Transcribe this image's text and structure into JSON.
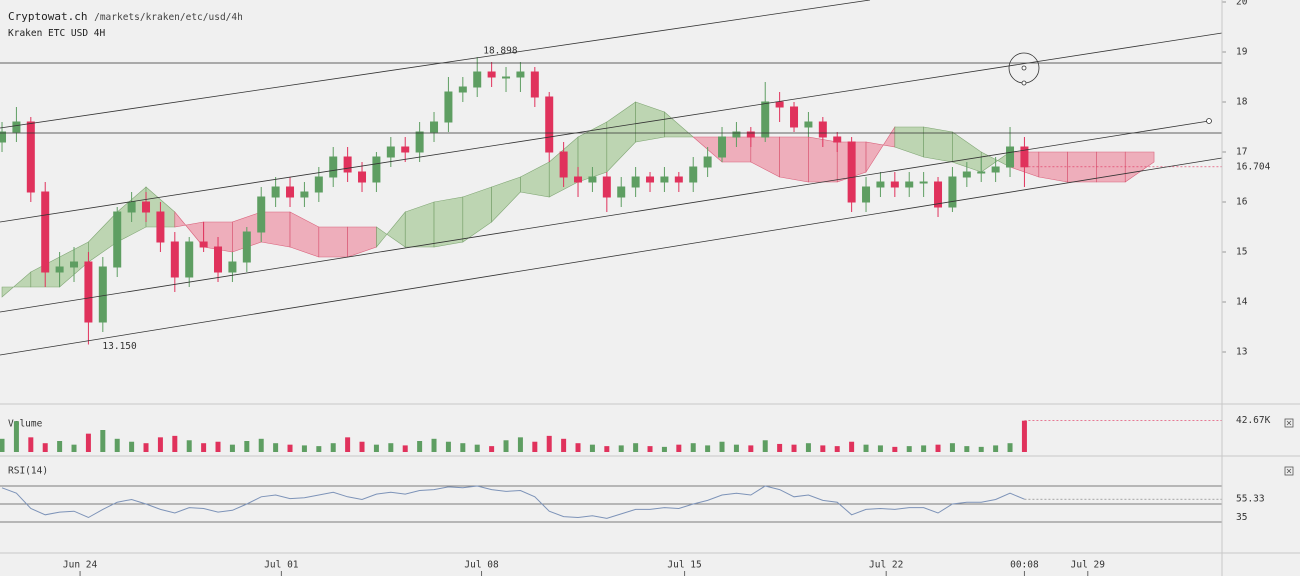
{
  "header": {
    "site": "Cryptowat.ch",
    "path": "/markets/kraken/etc/usd/4h",
    "subtitle": "Kraken ETC USD 4H"
  },
  "chart_data": [
    {
      "type": "candlestick",
      "up_color": "#5e9e62",
      "down_color": "#e0325c",
      "xlim": [
        -0.14,
        84.72
      ],
      "ylim": [
        11.98,
        20.04
      ],
      "yticks": [
        13,
        14,
        15,
        16,
        17,
        18,
        19,
        20
      ],
      "xticks": [
        {
          "value": 5.42,
          "label": "Jun 24"
        },
        {
          "value": 19.4,
          "label": "Jul 01"
        },
        {
          "value": 33.3,
          "label": "Jul 08"
        },
        {
          "value": 47.4,
          "label": "Jul 15"
        },
        {
          "value": 61.4,
          "label": "Jul 22"
        },
        {
          "value": 71,
          "label": "00:08"
        },
        {
          "value": 75.4,
          "label": "Jul 29"
        }
      ],
      "open": [
        17.2,
        17.4,
        17.6,
        16.2,
        14.6,
        14.7,
        14.8,
        13.6,
        14.7,
        15.8,
        16.0,
        15.8,
        15.2,
        14.5,
        15.2,
        15.1,
        14.6,
        14.8,
        15.4,
        16.1,
        16.3,
        16.1,
        16.2,
        16.5,
        16.9,
        16.6,
        16.4,
        16.9,
        17.1,
        17.0,
        17.4,
        17.6,
        18.2,
        18.3,
        18.6,
        18.5,
        18.5,
        18.6,
        18.1,
        17.0,
        16.5,
        16.4,
        16.5,
        16.1,
        16.3,
        16.5,
        16.4,
        16.5,
        16.4,
        16.7,
        16.9,
        17.3,
        17.4,
        17.3,
        18.0,
        17.9,
        17.5,
        17.6,
        17.3,
        17.2,
        16.0,
        16.3,
        16.4,
        16.3,
        16.4,
        16.4,
        15.9,
        16.5,
        16.6,
        16.6,
        16.7,
        17.1
      ],
      "high": [
        17.6,
        17.9,
        17.7,
        16.4,
        15.0,
        15.1,
        15.0,
        14.9,
        15.9,
        16.2,
        16.2,
        16.0,
        15.4,
        15.3,
        15.6,
        15.3,
        15.0,
        15.5,
        16.3,
        16.5,
        16.5,
        16.4,
        16.7,
        17.1,
        17.1,
        16.8,
        17.0,
        17.3,
        17.3,
        17.6,
        17.8,
        18.5,
        18.5,
        18.898,
        18.8,
        18.7,
        18.8,
        18.7,
        18.2,
        17.2,
        16.7,
        16.7,
        16.6,
        16.5,
        16.7,
        16.6,
        16.7,
        16.6,
        16.9,
        17.1,
        17.5,
        17.6,
        17.5,
        18.4,
        18.2,
        18.0,
        17.8,
        17.7,
        17.4,
        17.3,
        16.5,
        16.6,
        16.6,
        16.6,
        16.6,
        16.5,
        16.7,
        16.8,
        16.9,
        16.9,
        17.5,
        17.3
      ],
      "low": [
        17.0,
        17.2,
        16.0,
        14.3,
        14.3,
        14.4,
        13.15,
        13.4,
        14.5,
        15.6,
        15.6,
        15.0,
        14.2,
        14.3,
        15.0,
        14.4,
        14.4,
        14.6,
        15.2,
        15.9,
        15.9,
        15.9,
        16.0,
        16.3,
        16.4,
        16.2,
        16.2,
        16.7,
        16.8,
        16.8,
        17.2,
        17.4,
        18.0,
        18.1,
        18.3,
        18.2,
        18.2,
        17.9,
        16.8,
        16.3,
        16.1,
        16.2,
        15.8,
        15.9,
        16.1,
        16.2,
        16.2,
        16.2,
        16.2,
        16.5,
        16.8,
        17.1,
        17.1,
        17.2,
        17.6,
        17.4,
        17.3,
        17.1,
        17.0,
        15.8,
        15.8,
        16.1,
        16.1,
        16.1,
        16.1,
        15.7,
        15.8,
        16.3,
        16.4,
        16.4,
        16.5,
        16.3
      ],
      "close": [
        17.4,
        17.6,
        16.2,
        14.6,
        14.7,
        14.8,
        13.6,
        14.7,
        15.8,
        16.0,
        15.8,
        15.2,
        14.5,
        15.2,
        15.1,
        14.6,
        14.8,
        15.4,
        16.1,
        16.3,
        16.1,
        16.2,
        16.5,
        16.9,
        16.6,
        16.4,
        16.9,
        17.1,
        17.0,
        17.4,
        17.6,
        18.2,
        18.3,
        18.6,
        18.5,
        18.5,
        18.6,
        18.1,
        17.0,
        16.5,
        16.4,
        16.5,
        16.1,
        16.3,
        16.5,
        16.4,
        16.5,
        16.4,
        16.7,
        16.9,
        17.3,
        17.4,
        17.3,
        18.0,
        17.9,
        17.5,
        17.6,
        17.3,
        17.2,
        16.0,
        16.3,
        16.4,
        16.3,
        16.4,
        16.4,
        15.9,
        16.5,
        16.6,
        16.6,
        16.7,
        17.1,
        16.704
      ],
      "high_label": 18.898,
      "low_label": {
        "value": 13.15,
        "label": "13.150"
      },
      "cloud": {
        "up_color": "#b5d1a8",
        "down_color": "#eea3b2",
        "x": [
          0,
          2,
          4,
          6,
          8,
          10,
          12,
          14,
          16,
          18,
          20,
          22,
          24,
          26,
          28,
          30,
          32,
          34,
          36,
          38,
          40,
          42,
          44,
          46,
          48,
          50,
          52,
          54,
          56,
          58,
          60,
          62,
          64,
          66,
          68,
          70,
          72,
          74,
          76,
          78,
          80
        ],
        "span_a": [
          14.1,
          14.6,
          14.9,
          15.2,
          15.8,
          16.3,
          15.8,
          15.1,
          15.0,
          15.2,
          15.1,
          14.9,
          14.9,
          15.1,
          15.8,
          16.0,
          16.1,
          16.3,
          16.5,
          16.8,
          17.3,
          17.6,
          18.0,
          17.8,
          17.3,
          16.8,
          16.8,
          16.5,
          16.4,
          16.4,
          16.6,
          17.5,
          17.5,
          17.4,
          17.0,
          16.7,
          16.5,
          16.4,
          16.4,
          16.4,
          16.8
        ],
        "span_b": [
          14.3,
          14.3,
          14.3,
          14.8,
          15.2,
          15.5,
          15.5,
          15.6,
          15.6,
          15.8,
          15.8,
          15.5,
          15.5,
          15.5,
          15.1,
          15.1,
          15.2,
          15.6,
          16.2,
          16.1,
          16.4,
          16.6,
          17.2,
          17.3,
          17.3,
          17.3,
          17.3,
          17.3,
          17.3,
          17.2,
          17.2,
          17.1,
          16.9,
          16.8,
          16.6,
          17.0,
          17.0,
          17.0,
          17.0,
          17.0,
          17.0
        ]
      }
    },
    {
      "type": "bar",
      "title": "Volume",
      "ylim": [
        0,
        60
      ],
      "last_label": "42.67K",
      "values": [
        18,
        42,
        20,
        12,
        15,
        10,
        25,
        30,
        18,
        14,
        12,
        20,
        22,
        16,
        12,
        14,
        10,
        15,
        18,
        12,
        10,
        9,
        8,
        12,
        20,
        14,
        10,
        12,
        9,
        15,
        18,
        14,
        12,
        10,
        8,
        16,
        20,
        14,
        22,
        18,
        12,
        10,
        8,
        9,
        12,
        8,
        7,
        10,
        12,
        9,
        14,
        10,
        9,
        16,
        11,
        10,
        12,
        9,
        8,
        14,
        10,
        9,
        7,
        8,
        9,
        10,
        12,
        8,
        7,
        9,
        12,
        42.67
      ]
    },
    {
      "type": "line",
      "title": "RSI(14)",
      "color": "#7d93b8",
      "ylim": [
        0,
        100
      ],
      "yticks": [
        35
      ],
      "levels": [
        30,
        50,
        70
      ],
      "values": [
        68,
        62,
        45,
        38,
        41,
        42,
        35,
        44,
        52,
        55,
        50,
        44,
        40,
        46,
        45,
        41,
        43,
        50,
        58,
        60,
        56,
        57,
        60,
        63,
        58,
        55,
        61,
        63,
        61,
        65,
        66,
        69,
        68,
        70,
        66,
        64,
        65,
        58,
        42,
        36,
        35,
        37,
        34,
        39,
        44,
        44,
        46,
        45,
        50,
        54,
        60,
        62,
        60,
        70,
        66,
        58,
        60,
        54,
        52,
        38,
        44,
        45,
        44,
        46,
        46,
        40,
        50,
        52,
        52,
        55,
        62,
        55.33
      ]
    }
  ]
}
